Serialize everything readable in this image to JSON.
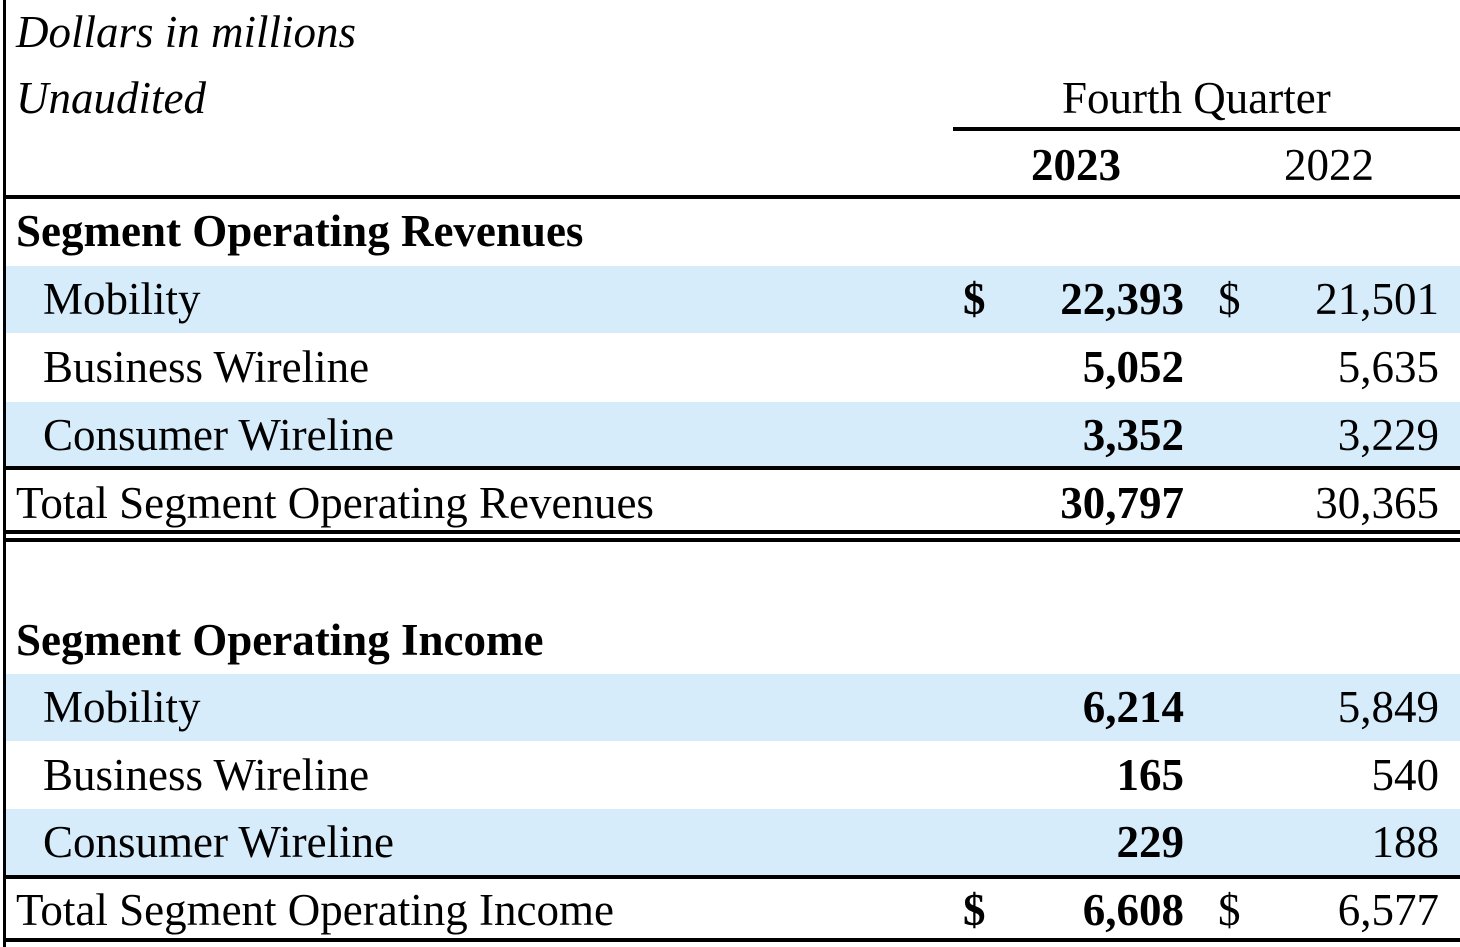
{
  "header": {
    "units": "Dollars in millions",
    "audit_status": "Unaudited",
    "period_label": "Fourth Quarter",
    "year_current": "2023",
    "year_prior": "2022"
  },
  "revenues": {
    "section_title": "Segment Operating Revenues",
    "rows": [
      {
        "label": "Mobility",
        "v2023": "22,393",
        "v2022": "21,501",
        "currency": "$"
      },
      {
        "label": "Business Wireline",
        "v2023": "5,052",
        "v2022": "5,635"
      },
      {
        "label": "Consumer Wireline",
        "v2023": "3,352",
        "v2022": "3,229"
      }
    ],
    "total": {
      "label": "Total Segment Operating Revenues",
      "v2023": "30,797",
      "v2022": "30,365"
    }
  },
  "income": {
    "section_title": "Segment Operating Income",
    "rows": [
      {
        "label": "Mobility",
        "v2023": "6,214",
        "v2022": "5,849"
      },
      {
        "label": "Business Wireline",
        "v2023": "165",
        "v2022": "540"
      },
      {
        "label": "Consumer Wireline",
        "v2023": "229",
        "v2022": "188"
      }
    ],
    "total": {
      "label": "Total Segment Operating Income",
      "v2023": "6,608",
      "v2022": "6,577",
      "currency": "$"
    }
  },
  "colors": {
    "band": "#d6ecfb",
    "rule": "#000000"
  }
}
